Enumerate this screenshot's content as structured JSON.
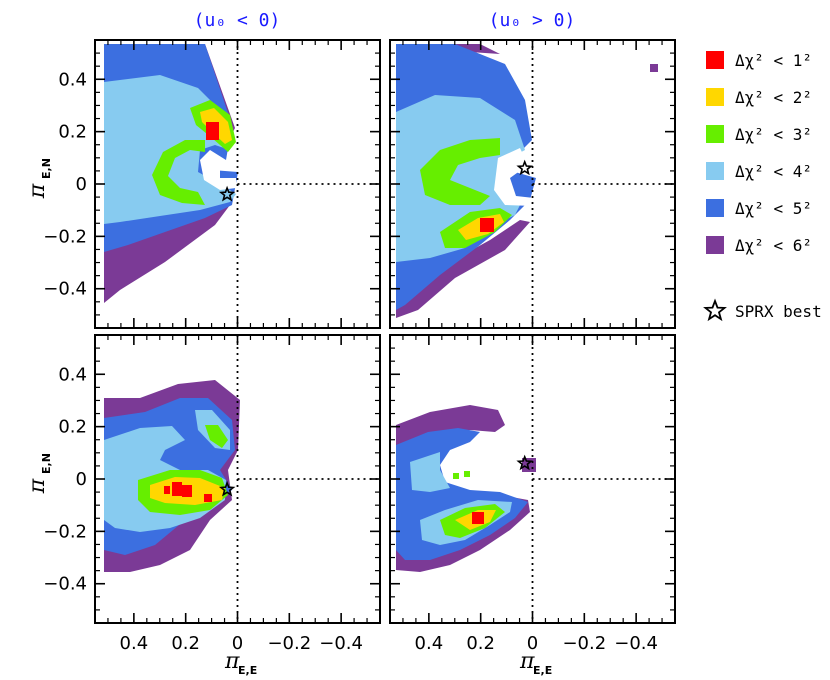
{
  "columns": {
    "left_title": "(u₀ < 0)",
    "right_title": "(u₀ > 0)"
  },
  "axes": {
    "xlabel": "π",
    "xlabel_sub": "E,E",
    "ylabel": "π",
    "ylabel_sub": "E,N",
    "xlim": [
      0.55,
      -0.55
    ],
    "ylim": [
      -0.55,
      0.55
    ],
    "x_ticks": [
      0.4,
      0.2,
      0,
      -0.2,
      -0.4
    ],
    "x_tick_labels": [
      "0.4",
      "0.2",
      "0",
      "−0.2",
      "−0.4"
    ],
    "y_ticks": [
      0.4,
      0.2,
      0,
      -0.2,
      -0.4
    ],
    "y_tick_labels": [
      "0.4",
      "0.2",
      "0",
      "−0.2",
      "−0.4"
    ]
  },
  "legend": {
    "items": [
      {
        "label": "Δχ² < 1²",
        "color": "#ff0000"
      },
      {
        "label": "Δχ² < 2²",
        "color": "#ffd700"
      },
      {
        "label": "Δχ² < 3²",
        "color": "#66ee00"
      },
      {
        "label": "Δχ² < 4²",
        "color": "#87cbf0"
      },
      {
        "label": "Δχ² < 5²",
        "color": "#3c6fe0"
      },
      {
        "label": "Δχ² < 6²",
        "color": "#7b3a96"
      }
    ],
    "star_label": "SPRX best"
  },
  "chart_data": [
    {
      "type": "contour",
      "panel": "top-left",
      "row": "top",
      "column": "u0 < 0",
      "best_fit_star": {
        "x": 0.04,
        "y": -0.04
      },
      "minima": [
        {
          "x": 0.08,
          "y": 0.2
        }
      ]
    },
    {
      "type": "contour",
      "panel": "top-right",
      "row": "top",
      "column": "u0 > 0",
      "best_fit_star": {
        "x": 0.03,
        "y": 0.06
      },
      "minima": [
        {
          "x": 0.15,
          "y": -0.16
        }
      ]
    },
    {
      "type": "contour",
      "panel": "bottom-left",
      "row": "bottom",
      "column": "u0 < 0",
      "best_fit_star": {
        "x": 0.04,
        "y": -0.04
      },
      "minima": [
        {
          "x": 0.2,
          "y": -0.05
        }
      ]
    },
    {
      "type": "contour",
      "panel": "bottom-right",
      "row": "bottom",
      "column": "u0 > 0",
      "best_fit_star": {
        "x": 0.03,
        "y": 0.06
      },
      "minima": [
        {
          "x": 0.15,
          "y": -0.15
        }
      ]
    }
  ]
}
